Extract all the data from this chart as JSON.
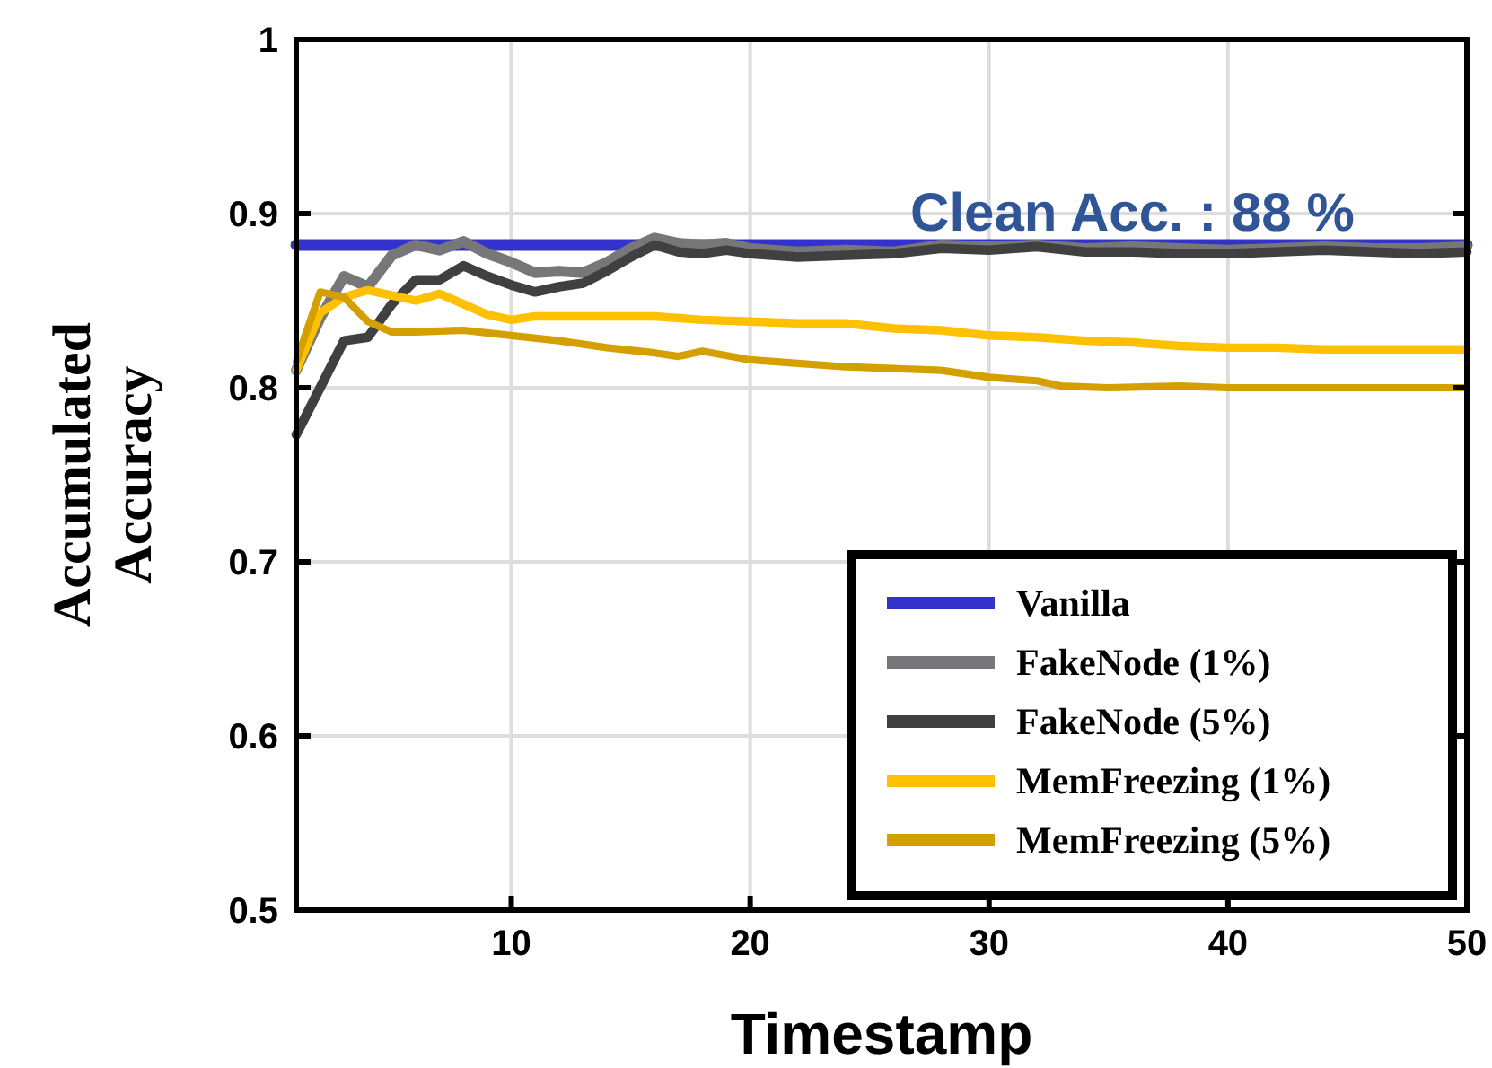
{
  "chart_data": {
    "type": "line",
    "xlabel": "Timestamp",
    "ylabel": "Accumulated\nAccuracy",
    "xlim": [
      1,
      50
    ],
    "xticks": [
      10,
      20,
      30,
      40,
      50
    ],
    "ylim": [
      0.5,
      1
    ],
    "yticks": [
      0.5,
      0.6,
      0.7,
      0.8,
      0.9,
      1
    ],
    "grid": true,
    "legend": "bottom right",
    "line_style": "solid",
    "marker": "none",
    "annotations": [
      {
        "text": "Clean Acc. : 88 %",
        "x": 36,
        "y": 0.882
      }
    ],
    "series": [
      {
        "name": "Vanilla",
        "color": "#3333cc",
        "x": [
          1,
          50
        ],
        "values": [
          0.882,
          0.882
        ]
      },
      {
        "name": "FakeNode (1%)",
        "color": "#77777a",
        "x": [
          1,
          2,
          3,
          4,
          5,
          6,
          7,
          8,
          9,
          10,
          11,
          12,
          13,
          14,
          15,
          16,
          17,
          18,
          19,
          20,
          22,
          24,
          26,
          28,
          30,
          32,
          34,
          36,
          38,
          40,
          42,
          44,
          46,
          48,
          50
        ],
        "values": [
          0.81,
          0.84,
          0.864,
          0.858,
          0.876,
          0.882,
          0.879,
          0.884,
          0.877,
          0.872,
          0.866,
          0.867,
          0.866,
          0.872,
          0.88,
          0.886,
          0.883,
          0.882,
          0.883,
          0.88,
          0.878,
          0.879,
          0.878,
          0.882,
          0.881,
          0.882,
          0.88,
          0.881,
          0.88,
          0.879,
          0.88,
          0.881,
          0.88,
          0.88,
          0.881
        ]
      },
      {
        "name": "FakeNode (5%)",
        "color": "#404040",
        "x": [
          1,
          2,
          3,
          4,
          5,
          6,
          7,
          8,
          9,
          10,
          11,
          12,
          13,
          14,
          15,
          16,
          17,
          18,
          19,
          20,
          22,
          24,
          26,
          28,
          30,
          32,
          34,
          36,
          38,
          40,
          42,
          44,
          46,
          48,
          50
        ],
        "values": [
          0.773,
          0.8,
          0.827,
          0.829,
          0.848,
          0.862,
          0.862,
          0.87,
          0.864,
          0.859,
          0.855,
          0.858,
          0.86,
          0.867,
          0.875,
          0.882,
          0.878,
          0.877,
          0.879,
          0.877,
          0.875,
          0.876,
          0.877,
          0.88,
          0.879,
          0.881,
          0.878,
          0.878,
          0.877,
          0.877,
          0.878,
          0.879,
          0.878,
          0.877,
          0.878
        ]
      },
      {
        "name": "MemFreezing (1%)",
        "color": "#ffc000",
        "x": [
          1,
          2,
          3,
          4,
          5,
          6,
          7,
          8,
          9,
          10,
          11,
          12,
          14,
          16,
          18,
          20,
          22,
          24,
          26,
          28,
          30,
          32,
          34,
          36,
          38,
          40,
          42,
          44,
          46,
          48,
          50
        ],
        "values": [
          0.81,
          0.843,
          0.852,
          0.856,
          0.853,
          0.85,
          0.854,
          0.848,
          0.842,
          0.839,
          0.841,
          0.841,
          0.841,
          0.841,
          0.839,
          0.838,
          0.837,
          0.837,
          0.834,
          0.833,
          0.83,
          0.829,
          0.827,
          0.826,
          0.824,
          0.823,
          0.823,
          0.822,
          0.822,
          0.822,
          0.822
        ]
      },
      {
        "name": "MemFreezing (5%)",
        "color": "#d4a000",
        "x": [
          1,
          2,
          3,
          4,
          5,
          6,
          8,
          10,
          12,
          14,
          16,
          17,
          18,
          20,
          22,
          24,
          26,
          28,
          30,
          32,
          33,
          35,
          38,
          40,
          44,
          50
        ],
        "values": [
          0.815,
          0.855,
          0.852,
          0.838,
          0.832,
          0.832,
          0.833,
          0.83,
          0.827,
          0.823,
          0.82,
          0.818,
          0.821,
          0.816,
          0.814,
          0.812,
          0.811,
          0.81,
          0.806,
          0.804,
          0.801,
          0.8,
          0.801,
          0.8,
          0.8,
          0.8
        ]
      }
    ]
  }
}
